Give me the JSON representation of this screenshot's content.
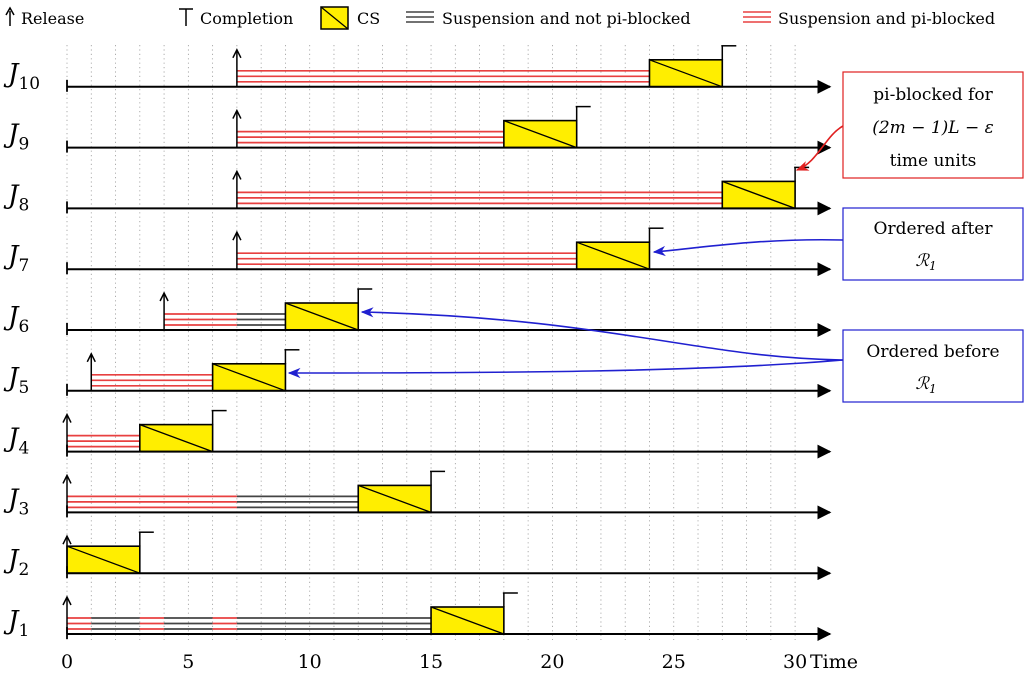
{
  "legend": {
    "release": "Release",
    "completion": "Completion",
    "cs": "CS",
    "susp_not": "Suspension and not pi-blocked",
    "susp_pi": "Suspension and pi-blocked"
  },
  "axis": {
    "x_label": "Time",
    "ticks": [
      "0",
      "5",
      "10",
      "15",
      "20",
      "25",
      "30"
    ],
    "x_range": [
      0,
      30
    ]
  },
  "jobs": [
    {
      "name": "J",
      "index": "1",
      "release": 0,
      "segments": [
        {
          "type": "pi",
          "from": 0,
          "to": 1
        },
        {
          "type": "not",
          "from": 1,
          "to": 3
        },
        {
          "type": "pi",
          "from": 3,
          "to": 4
        },
        {
          "type": "not",
          "from": 4,
          "to": 6
        },
        {
          "type": "pi",
          "from": 6,
          "to": 7
        },
        {
          "type": "not",
          "from": 7,
          "to": 15
        }
      ],
      "cs": [
        15,
        18
      ],
      "completion": 18
    },
    {
      "name": "J",
      "index": "2",
      "release": 0,
      "segments": [],
      "cs": [
        0,
        3
      ],
      "completion": 3
    },
    {
      "name": "J",
      "index": "3",
      "release": 0,
      "segments": [
        {
          "type": "pi",
          "from": 0,
          "to": 7
        },
        {
          "type": "not",
          "from": 7,
          "to": 12
        }
      ],
      "cs": [
        12,
        15
      ],
      "completion": 15
    },
    {
      "name": "J",
      "index": "4",
      "release": 0,
      "segments": [
        {
          "type": "pi",
          "from": 0,
          "to": 3
        }
      ],
      "cs": [
        3,
        6
      ],
      "completion": 6
    },
    {
      "name": "J",
      "index": "5",
      "release": 1,
      "segments": [
        {
          "type": "pi",
          "from": 1,
          "to": 6
        }
      ],
      "cs": [
        6,
        9
      ],
      "completion": 9
    },
    {
      "name": "J",
      "index": "6",
      "release": 4,
      "segments": [
        {
          "type": "pi",
          "from": 4,
          "to": 7
        },
        {
          "type": "not",
          "from": 7,
          "to": 9
        }
      ],
      "cs": [
        9,
        12
      ],
      "completion": 12
    },
    {
      "name": "J",
      "index": "7",
      "release": 7,
      "segments": [
        {
          "type": "pi",
          "from": 7,
          "to": 21
        }
      ],
      "cs": [
        21,
        24
      ],
      "completion": 24
    },
    {
      "name": "J",
      "index": "8",
      "release": 7,
      "segments": [
        {
          "type": "pi",
          "from": 7,
          "to": 27
        }
      ],
      "cs": [
        27,
        30
      ],
      "completion": 30
    },
    {
      "name": "J",
      "index": "9",
      "release": 7,
      "segments": [
        {
          "type": "pi",
          "from": 7,
          "to": 18
        }
      ],
      "cs": [
        18,
        21
      ],
      "completion": 21
    },
    {
      "name": "J",
      "index": "10",
      "release": 7,
      "segments": [
        {
          "type": "pi",
          "from": 7,
          "to": 24
        }
      ],
      "cs": [
        24,
        27
      ],
      "completion": 27
    }
  ],
  "annotations": {
    "pi_blocked": {
      "line1": "pi-blocked for",
      "line2": "(2m − 1)L − ε",
      "line3": "time units",
      "color": "#e02020"
    },
    "ordered_after": {
      "line1": "Ordered after",
      "line2": "ℛ",
      "sub": "1",
      "color": "#2020d0"
    },
    "ordered_before": {
      "line1": "Ordered before",
      "line2": "ℛ",
      "sub": "1",
      "color": "#2020d0"
    }
  },
  "colors": {
    "cs_fill": "#ffee00",
    "pi_stripe": "#e84040",
    "not_stripe": "#444444",
    "grid": "#999999"
  }
}
